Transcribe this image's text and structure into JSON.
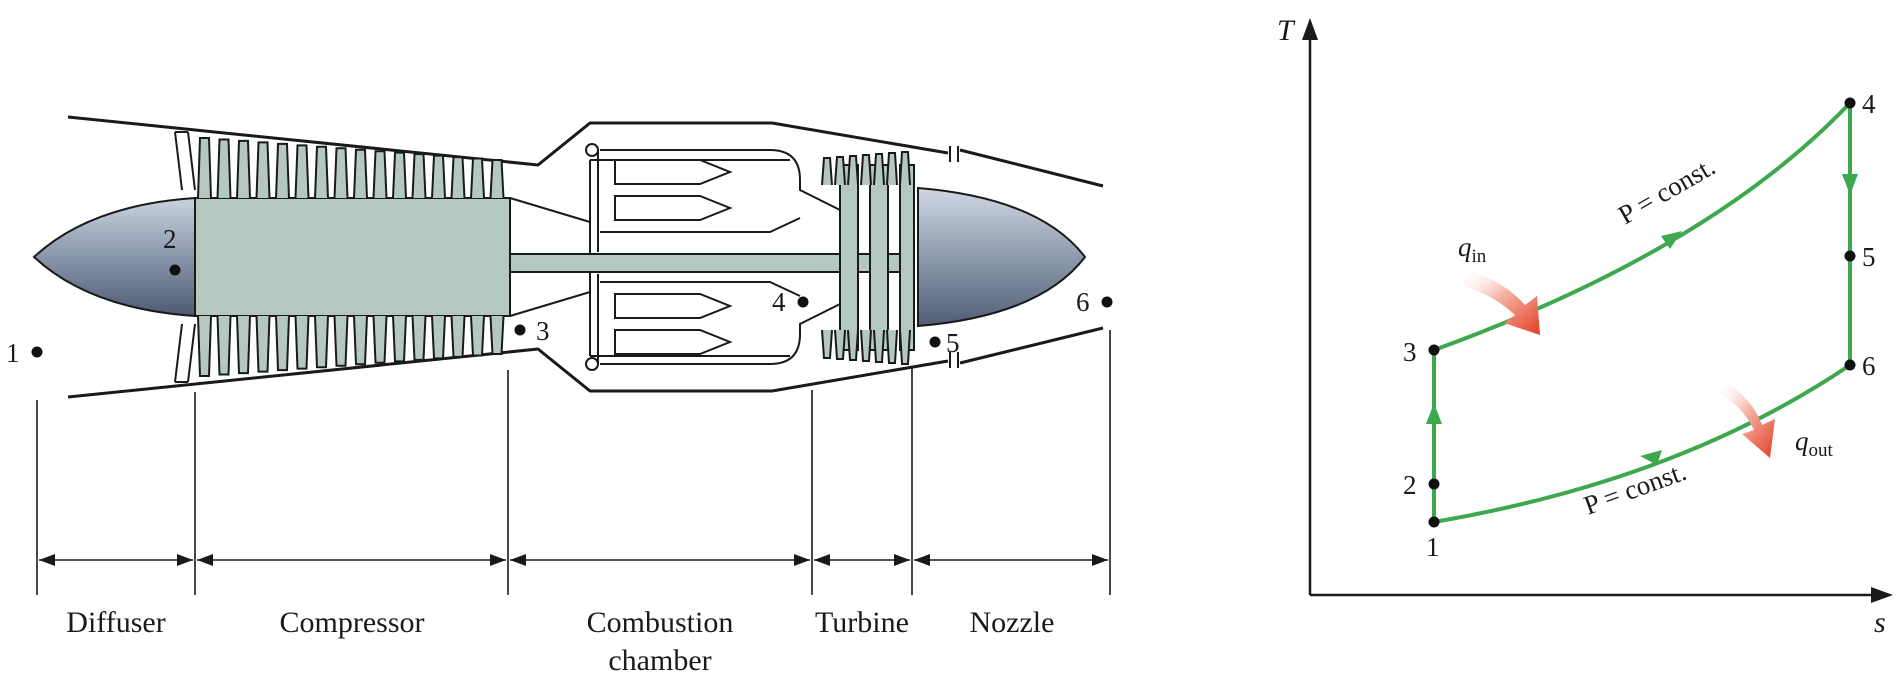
{
  "engine": {
    "sections": [
      {
        "key": "diffuser",
        "label": "Diffuser"
      },
      {
        "key": "compressor",
        "label": "Compressor"
      },
      {
        "key": "combustion",
        "label": "Combustion",
        "label2": "chamber"
      },
      {
        "key": "turbine",
        "label": "Turbine"
      },
      {
        "key": "nozzle",
        "label": "Nozzle"
      }
    ],
    "station_labels": [
      "1",
      "2",
      "3",
      "4",
      "5",
      "6"
    ]
  },
  "ts_diagram": {
    "x_axis_label": "s",
    "y_axis_label": "T",
    "state_labels": [
      "1",
      "2",
      "3",
      "4",
      "5",
      "6"
    ],
    "process_label_upper": "P = const.",
    "process_label_lower": "P = const.",
    "heat_in": {
      "symbol": "q",
      "subscript": "in"
    },
    "heat_out": {
      "symbol": "q",
      "subscript": "out"
    },
    "colors": {
      "process": "#3ea84e",
      "heat_arrow": "#e8533a"
    }
  }
}
